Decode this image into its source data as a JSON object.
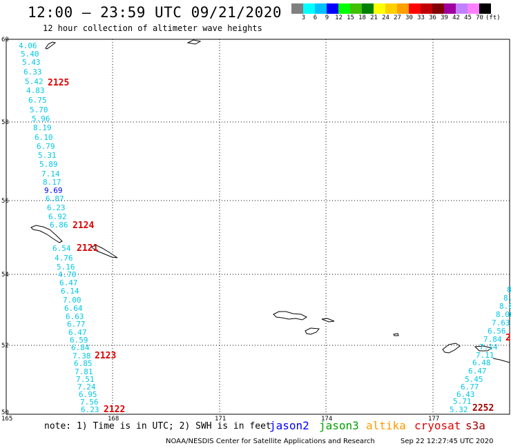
{
  "header": {
    "title": "12:00 – 23:59 UTC 09/21/2020",
    "subtitle": "12 hour collection of altimeter wave heights"
  },
  "colorbar": {
    "colors": [
      "#808080",
      "#00ffff",
      "#00c0ff",
      "#0000ff",
      "#00ff00",
      "#40c000",
      "#008000",
      "#ffff00",
      "#ffd000",
      "#ffa000",
      "#ff0000",
      "#c00000",
      "#800000",
      "#a000a0",
      "#c080ff",
      "#ff80ff",
      "#000000"
    ],
    "labels": [
      "3",
      "6",
      "9",
      "12",
      "15",
      "18",
      "21",
      "24",
      "27",
      "30",
      "33",
      "36",
      "39",
      "42",
      "45",
      "70"
    ],
    "unit": "(ft)"
  },
  "map": {
    "lat_labels": [
      "60",
      "58",
      "56",
      "54",
      "52",
      "50"
    ],
    "lon_labels": [
      "165",
      "168",
      "171",
      "174",
      "177"
    ]
  },
  "track_west": {
    "values": [
      "4.06",
      "5.40",
      "5.43",
      "6.33",
      "5.42",
      "4.83",
      "6.75",
      "5.70",
      "5.96",
      "8.19",
      "6.10",
      "6.79",
      "5.31",
      "5.89",
      "7.14",
      "8.17",
      "9.69",
      "6.87",
      "6.23",
      "6.92",
      "6.86",
      "6.54",
      "4.76",
      "5.16",
      "4.70",
      "6.47",
      "6.14",
      "7.00",
      "6.64",
      "6.63",
      "6.77",
      "6.47",
      "6.59",
      "6.84",
      "7.38",
      "6.85",
      "7.81",
      "7.51",
      "7.24",
      "6.95",
      "7.56",
      "6.23"
    ],
    "color_levels": [
      "#00c8e6",
      "#00c8e6",
      "#00c8e6",
      "#00c8e6",
      "#00c8e6",
      "#00c8e6",
      "#00c8e6",
      "#00c8e6",
      "#00c8e6",
      "#00c8e6",
      "#00c8e6",
      "#00c8e6",
      "#00c8e6",
      "#00c8e6",
      "#00c8e6",
      "#00c8e6",
      "#0000ff",
      "#00c8e6",
      "#00c8e6",
      "#00c8e6",
      "#00c8e6",
      "#00c8e6",
      "#00c8e6",
      "#00c8e6",
      "#00c8e6",
      "#00c8e6",
      "#00c8e6",
      "#00c8e6",
      "#00c8e6",
      "#00c8e6",
      "#00c8e6",
      "#00c8e6",
      "#00c8e6",
      "#00c8e6",
      "#00c8e6",
      "#00c8e6",
      "#00c8e6",
      "#00c8e6",
      "#00c8e6",
      "#00c8e6",
      "#00c8e6",
      "#00c8e6"
    ]
  },
  "track_east": {
    "values": [
      "8",
      "8.",
      "8.0",
      "8.00",
      "7.63",
      "6.56",
      "7.84",
      "7.14",
      "7.11",
      "6.48",
      "6.47",
      "5.45",
      "6.77",
      "6.43",
      "5.71",
      "5.32"
    ],
    "color": "#00c8e6"
  },
  "pass_labels": [
    "2125",
    "2124",
    "2121",
    "2123",
    "2122",
    "2252",
    "2"
  ],
  "pass_colors": {
    "red": "#e00000",
    "dark_red": "#a00000"
  },
  "footer": {
    "note": "note: 1) Time is in UTC; 2) SWH is in feet",
    "legend": [
      {
        "name": "jason2",
        "color": "#0000ff"
      },
      {
        "name": "jason3",
        "color": "#00a000"
      },
      {
        "name": "altika",
        "color": "#ff9900"
      },
      {
        "name": "cryosat",
        "color": "#e00000"
      },
      {
        "name": "s3a",
        "color": "#a00000"
      }
    ],
    "credit": "NOAA/NESDIS Center for Satellite Applications and Research",
    "timestamp": "Sep 22 12:27:45 UTC 2020"
  }
}
